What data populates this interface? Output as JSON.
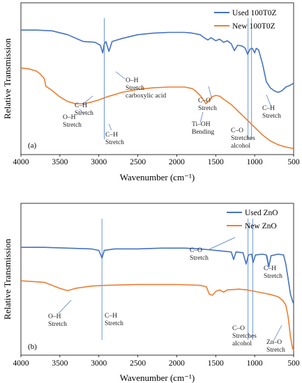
{
  "colors": {
    "used": "#4472C4",
    "new": "#ED7D31",
    "marker": "#5B8BD6"
  },
  "chart_data": [
    {
      "type": "line",
      "panel_label": "(a)",
      "xlabel": "Wavenumber (cm⁻¹)",
      "ylabel": "Relative Transmission",
      "xlim": [
        4000,
        500
      ],
      "ylim": [
        0,
        1
      ],
      "xticks": [
        "4000",
        "3500",
        "3000",
        "2500",
        "2000",
        "1500",
        "1000",
        "500"
      ],
      "series": [
        {
          "name": "Used 100T0Z",
          "color": "#4472C4",
          "points": [
            [
              4000,
              0.82
            ],
            [
              3800,
              0.82
            ],
            [
              3600,
              0.815
            ],
            [
              3400,
              0.79
            ],
            [
              3200,
              0.745
            ],
            [
              3050,
              0.74
            ],
            [
              2980,
              0.72
            ],
            [
              2950,
              0.67
            ],
            [
              2930,
              0.73
            ],
            [
              2910,
              0.745
            ],
            [
              2870,
              0.68
            ],
            [
              2830,
              0.745
            ],
            [
              2700,
              0.765
            ],
            [
              2500,
              0.79
            ],
            [
              2300,
              0.8
            ],
            [
              2100,
              0.805
            ],
            [
              1900,
              0.805
            ],
            [
              1800,
              0.8
            ],
            [
              1700,
              0.79
            ],
            [
              1650,
              0.77
            ],
            [
              1600,
              0.755
            ],
            [
              1560,
              0.77
            ],
            [
              1500,
              0.75
            ],
            [
              1450,
              0.76
            ],
            [
              1400,
              0.74
            ],
            [
              1350,
              0.75
            ],
            [
              1300,
              0.73
            ],
            [
              1260,
              0.685
            ],
            [
              1220,
              0.72
            ],
            [
              1160,
              0.715
            ],
            [
              1120,
              0.7
            ],
            [
              1090,
              0.66
            ],
            [
              1060,
              0.695
            ],
            [
              1030,
              0.7
            ],
            [
              1000,
              0.67
            ],
            [
              980,
              0.7
            ],
            [
              950,
              0.69
            ],
            [
              900,
              0.6
            ],
            [
              850,
              0.48
            ],
            [
              800,
              0.44
            ],
            [
              750,
              0.42
            ],
            [
              700,
              0.41
            ],
            [
              650,
              0.42
            ],
            [
              600,
              0.445
            ],
            [
              550,
              0.455
            ],
            [
              500,
              0.47
            ]
          ]
        },
        {
          "name": "New 100T0Z",
          "color": "#ED7D31",
          "points": [
            [
              4000,
              0.57
            ],
            [
              3900,
              0.565
            ],
            [
              3800,
              0.55
            ],
            [
              3750,
              0.53
            ],
            [
              3700,
              0.5
            ],
            [
              3680,
              0.45
            ],
            [
              3620,
              0.43
            ],
            [
              3500,
              0.38
            ],
            [
              3400,
              0.35
            ],
            [
              3300,
              0.335
            ],
            [
              3200,
              0.335
            ],
            [
              3100,
              0.345
            ],
            [
              3000,
              0.36
            ],
            [
              2900,
              0.38
            ],
            [
              2700,
              0.41
            ],
            [
              2500,
              0.43
            ],
            [
              2300,
              0.44
            ],
            [
              2100,
              0.445
            ],
            [
              1900,
              0.445
            ],
            [
              1800,
              0.435
            ],
            [
              1750,
              0.415
            ],
            [
              1700,
              0.39
            ],
            [
              1650,
              0.355
            ],
            [
              1625,
              0.335
            ],
            [
              1600,
              0.35
            ],
            [
              1550,
              0.38
            ],
            [
              1500,
              0.39
            ],
            [
              1450,
              0.385
            ],
            [
              1400,
              0.365
            ],
            [
              1300,
              0.33
            ],
            [
              1200,
              0.28
            ],
            [
              1100,
              0.23
            ],
            [
              1000,
              0.18
            ],
            [
              900,
              0.13
            ],
            [
              800,
              0.09
            ],
            [
              700,
              0.065
            ],
            [
              600,
              0.05
            ],
            [
              500,
              0.04
            ]
          ]
        }
      ],
      "annotations": [
        {
          "lines": [
            "C–H",
            "Stretch"
          ]
        },
        {
          "lines": [
            "O–H",
            "Stretch",
            "carboxylic acid"
          ]
        },
        {
          "lines": [
            "C–O",
            "Stretch"
          ]
        },
        {
          "lines": [
            "C–H",
            "Stretch"
          ]
        },
        {
          "lines": [
            "O–H",
            "Stretch"
          ]
        },
        {
          "lines": [
            "C–H",
            "Stretch"
          ]
        },
        {
          "lines": [
            "Ti–OH",
            "Bending"
          ]
        },
        {
          "lines": [
            "C–O",
            "Stretches",
            "alcohol"
          ]
        }
      ],
      "marker_lines": [
        2930,
        1085,
        1040
      ]
    },
    {
      "type": "line",
      "panel_label": "(b)",
      "xlabel": "Wavenumber (cm⁻¹)",
      "ylabel": "Relative Transmission",
      "xlim": [
        4000,
        500
      ],
      "ylim": [
        0,
        1
      ],
      "xticks": [
        "4000",
        "3500",
        "3000",
        "2500",
        "2000",
        "1500",
        "1000",
        "500"
      ],
      "series": [
        {
          "name": "Used ZnO",
          "color": "#4472C4",
          "points": [
            [
              4000,
              0.71
            ],
            [
              3700,
              0.71
            ],
            [
              3400,
              0.705
            ],
            [
              3100,
              0.7
            ],
            [
              3000,
              0.69
            ],
            [
              2960,
              0.64
            ],
            [
              2930,
              0.69
            ],
            [
              2800,
              0.7
            ],
            [
              2500,
              0.7
            ],
            [
              2200,
              0.705
            ],
            [
              1900,
              0.705
            ],
            [
              1700,
              0.7
            ],
            [
              1600,
              0.695
            ],
            [
              1500,
              0.69
            ],
            [
              1400,
              0.685
            ],
            [
              1300,
              0.68
            ],
            [
              1270,
              0.63
            ],
            [
              1240,
              0.68
            ],
            [
              1150,
              0.675
            ],
            [
              1110,
              0.6
            ],
            [
              1080,
              0.66
            ],
            [
              1040,
              0.665
            ],
            [
              1020,
              0.61
            ],
            [
              990,
              0.66
            ],
            [
              900,
              0.665
            ],
            [
              850,
              0.66
            ],
            [
              820,
              0.58
            ],
            [
              790,
              0.655
            ],
            [
              700,
              0.665
            ],
            [
              630,
              0.66
            ],
            [
              600,
              0.6
            ],
            [
              570,
              0.5
            ],
            [
              540,
              0.4
            ],
            [
              510,
              0.35
            ],
            [
              500,
              0.34
            ]
          ]
        },
        {
          "name": "New ZnO",
          "color": "#ED7D31",
          "points": [
            [
              4000,
              0.49
            ],
            [
              3700,
              0.48
            ],
            [
              3500,
              0.44
            ],
            [
              3400,
              0.425
            ],
            [
              3300,
              0.44
            ],
            [
              3100,
              0.455
            ],
            [
              2900,
              0.46
            ],
            [
              2500,
              0.465
            ],
            [
              2000,
              0.465
            ],
            [
              1700,
              0.46
            ],
            [
              1620,
              0.45
            ],
            [
              1580,
              0.4
            ],
            [
              1540,
              0.395
            ],
            [
              1500,
              0.42
            ],
            [
              1450,
              0.43
            ],
            [
              1400,
              0.415
            ],
            [
              1350,
              0.43
            ],
            [
              1200,
              0.435
            ],
            [
              1100,
              0.43
            ],
            [
              1050,
              0.425
            ],
            [
              1000,
              0.42
            ],
            [
              900,
              0.41
            ],
            [
              800,
              0.4
            ],
            [
              700,
              0.385
            ],
            [
              640,
              0.36
            ],
            [
              600,
              0.33
            ],
            [
              570,
              0.25
            ],
            [
              540,
              0.12
            ],
            [
              515,
              0.05
            ],
            [
              500,
              0.03
            ]
          ]
        }
      ],
      "annotations": [
        {
          "lines": [
            "C–O",
            "Stretch"
          ]
        },
        {
          "lines": [
            "C–H",
            "Stretch"
          ]
        },
        {
          "lines": [
            "O–H",
            "Stretch"
          ]
        },
        {
          "lines": [
            "C–H",
            "Stretch"
          ]
        },
        {
          "lines": [
            "C–O",
            "Stretches",
            "alcohol"
          ]
        },
        {
          "lines": [
            "Zn–O",
            "Stretch"
          ]
        }
      ],
      "marker_lines": [
        2960,
        1085,
        1025
      ]
    }
  ]
}
